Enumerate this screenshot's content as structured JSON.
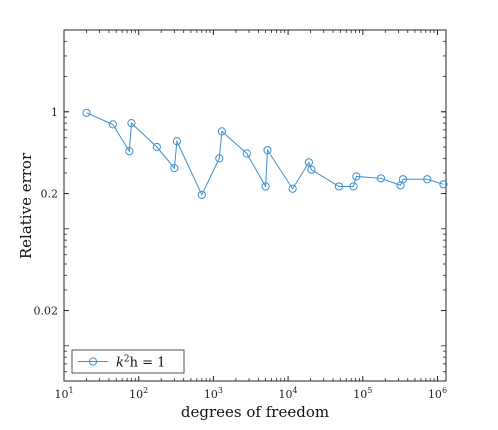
{
  "chart_data": {
    "type": "line",
    "xscale": "log",
    "yscale": "log",
    "xlim": [
      10,
      1300000
    ],
    "ylim": [
      0.005,
      5
    ],
    "xlabel": "degrees of freedom",
    "ylabel": "Relative error",
    "x_ticks": [
      10,
      100,
      1000,
      10000,
      100000,
      1000000
    ],
    "x_tick_labels": [
      {
        "base": "10",
        "exp": "1"
      },
      {
        "base": "10",
        "exp": "2"
      },
      {
        "base": "10",
        "exp": "3"
      },
      {
        "base": "10",
        "exp": "4"
      },
      {
        "base": "10",
        "exp": "5"
      },
      {
        "base": "10",
        "exp": "6"
      }
    ],
    "y_ticks": [
      0.02,
      0.2,
      1
    ],
    "y_tick_labels": [
      "0.02",
      "0.2",
      "1"
    ],
    "grid": false,
    "legend_position": "bottom-left",
    "series": [
      {
        "name": "k²h = 1",
        "legend_base": "k",
        "legend_sup": "2",
        "legend_rest": "h = 1",
        "color": "#3d8fd1",
        "marker": "circle-open",
        "x": [
          20,
          45,
          75,
          80,
          175,
          300,
          325,
          700,
          1200,
          1300,
          2800,
          5000,
          5300,
          11500,
          19000,
          20500,
          48000,
          75000,
          82000,
          175000,
          320000,
          345000,
          730000,
          1200000
        ],
        "y": [
          0.98,
          0.78,
          0.46,
          0.8,
          0.5,
          0.33,
          0.56,
          0.195,
          0.4,
          0.68,
          0.44,
          0.23,
          0.47,
          0.22,
          0.37,
          0.32,
          0.23,
          0.23,
          0.28,
          0.27,
          0.235,
          0.265,
          0.265,
          0.24
        ]
      }
    ]
  }
}
